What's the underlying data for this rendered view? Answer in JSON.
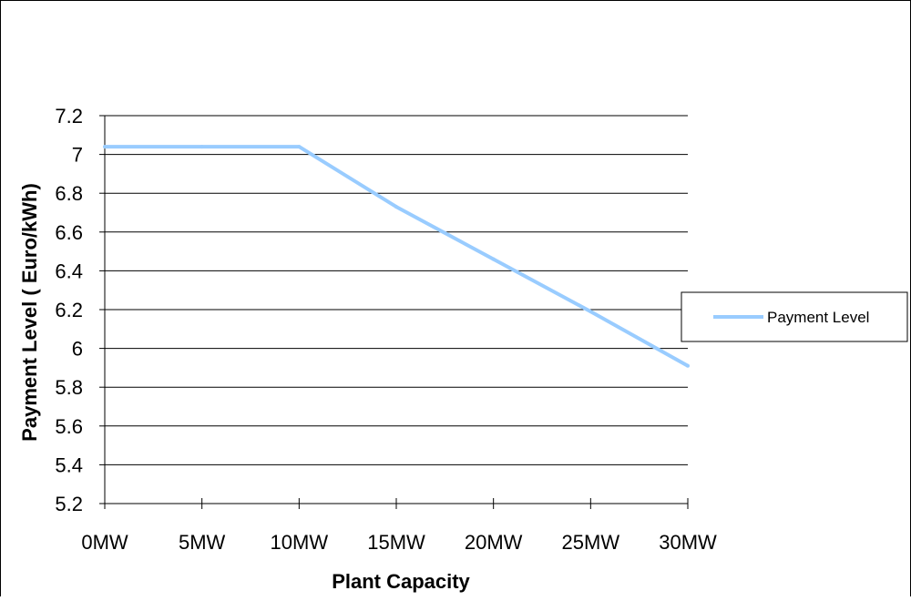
{
  "chart_data": {
    "type": "line",
    "title": "",
    "xlabel": "Plant Capacity",
    "ylabel": "Payment Level ( Euro/kWh)",
    "categories": [
      "0MW",
      "5MW",
      "10MW",
      "15MW",
      "20MW",
      "25MW",
      "30MW"
    ],
    "y_ticks": [
      "5.2",
      "5.4",
      "5.6",
      "5.8",
      "6",
      "6.2",
      "6.4",
      "6.6",
      "6.8",
      "7",
      "7.2"
    ],
    "ylim": [
      5.2,
      7.2
    ],
    "grid": true,
    "legend_position": "right",
    "series": [
      {
        "name": "Payment Level",
        "color": "#99ccff",
        "values": [
          7.04,
          7.04,
          7.04,
          6.73,
          6.46,
          6.19,
          5.91
        ]
      }
    ]
  }
}
